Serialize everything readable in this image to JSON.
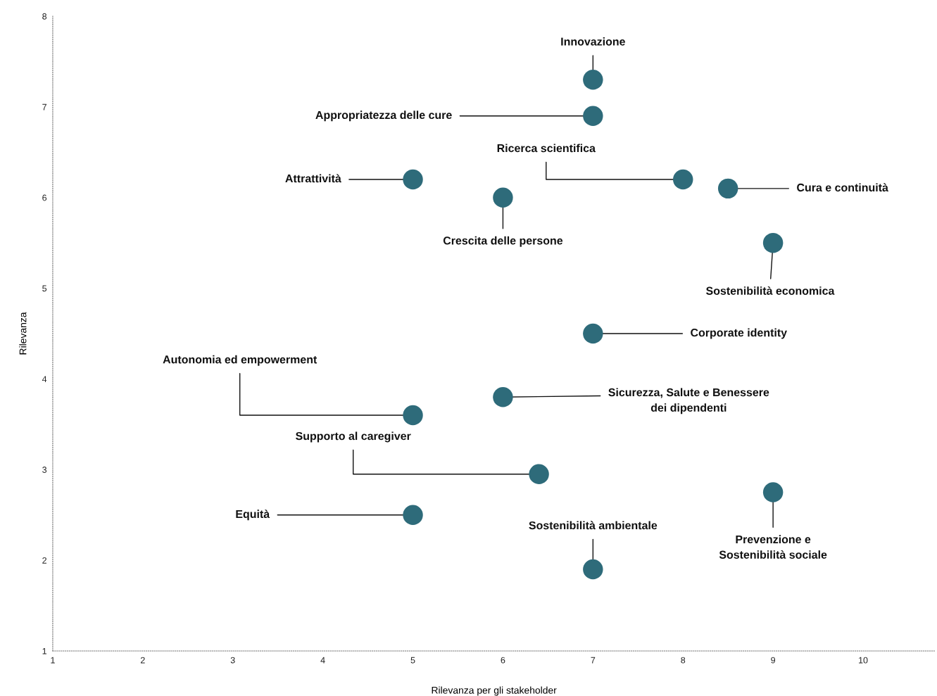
{
  "chart_data": {
    "type": "scatter",
    "xlabel": "Rilevanza per gli stakeholder",
    "ylabel": "Rilevanza",
    "x": [
      7,
      7,
      8,
      5,
      8.5,
      6,
      9,
      7,
      6,
      5,
      6.4,
      5,
      9,
      7
    ],
    "series": [
      {
        "color": "#2e6b7a",
        "values": [
          7.3,
          6.9,
          6.2,
          6.2,
          6.1,
          6.0,
          5.5,
          4.5,
          3.8,
          3.6,
          2.95,
          2.5,
          2.75,
          1.9
        ]
      }
    ],
    "marker": "circle",
    "grid": false,
    "xlim": [
      1,
      10.8
    ],
    "ylim": [
      1,
      8
    ],
    "xticks": [
      1,
      2,
      3,
      4,
      5,
      6,
      7,
      8,
      9,
      10
    ],
    "yticks": [
      1,
      2,
      3,
      4,
      5,
      6,
      7,
      8
    ],
    "annotations": [
      {
        "text": "Innovazione",
        "x": 7,
        "y": 7.3
      },
      {
        "text": "Appropriatezza delle cure",
        "x": 7,
        "y": 6.9
      },
      {
        "text": "Ricerca scientifica",
        "x": 8,
        "y": 6.2
      },
      {
        "text": "Attrattività",
        "x": 5,
        "y": 6.2
      },
      {
        "text": "Cura e continuità",
        "x": 8.5,
        "y": 6.1
      },
      {
        "text": "Crescita delle persone",
        "x": 6,
        "y": 6.0
      },
      {
        "text": "Sostenibilità economica",
        "x": 9,
        "y": 5.5
      },
      {
        "text": "Corporate identity",
        "x": 7,
        "y": 4.5
      },
      {
        "text": "Sicurezza, Salute e Benessere\ndei dipendenti",
        "x": 6,
        "y": 3.8
      },
      {
        "text": "Autonomia ed empowerment",
        "x": 5,
        "y": 3.6
      },
      {
        "text": "Supporto al caregiver",
        "x": 6.4,
        "y": 2.95
      },
      {
        "text": "Equità",
        "x": 5,
        "y": 2.5
      },
      {
        "text": "Prevenzione e\nSostenibilità sociale",
        "x": 9,
        "y": 2.75
      },
      {
        "text": "Sostenibilità ambientale",
        "x": 7,
        "y": 1.9
      }
    ]
  }
}
